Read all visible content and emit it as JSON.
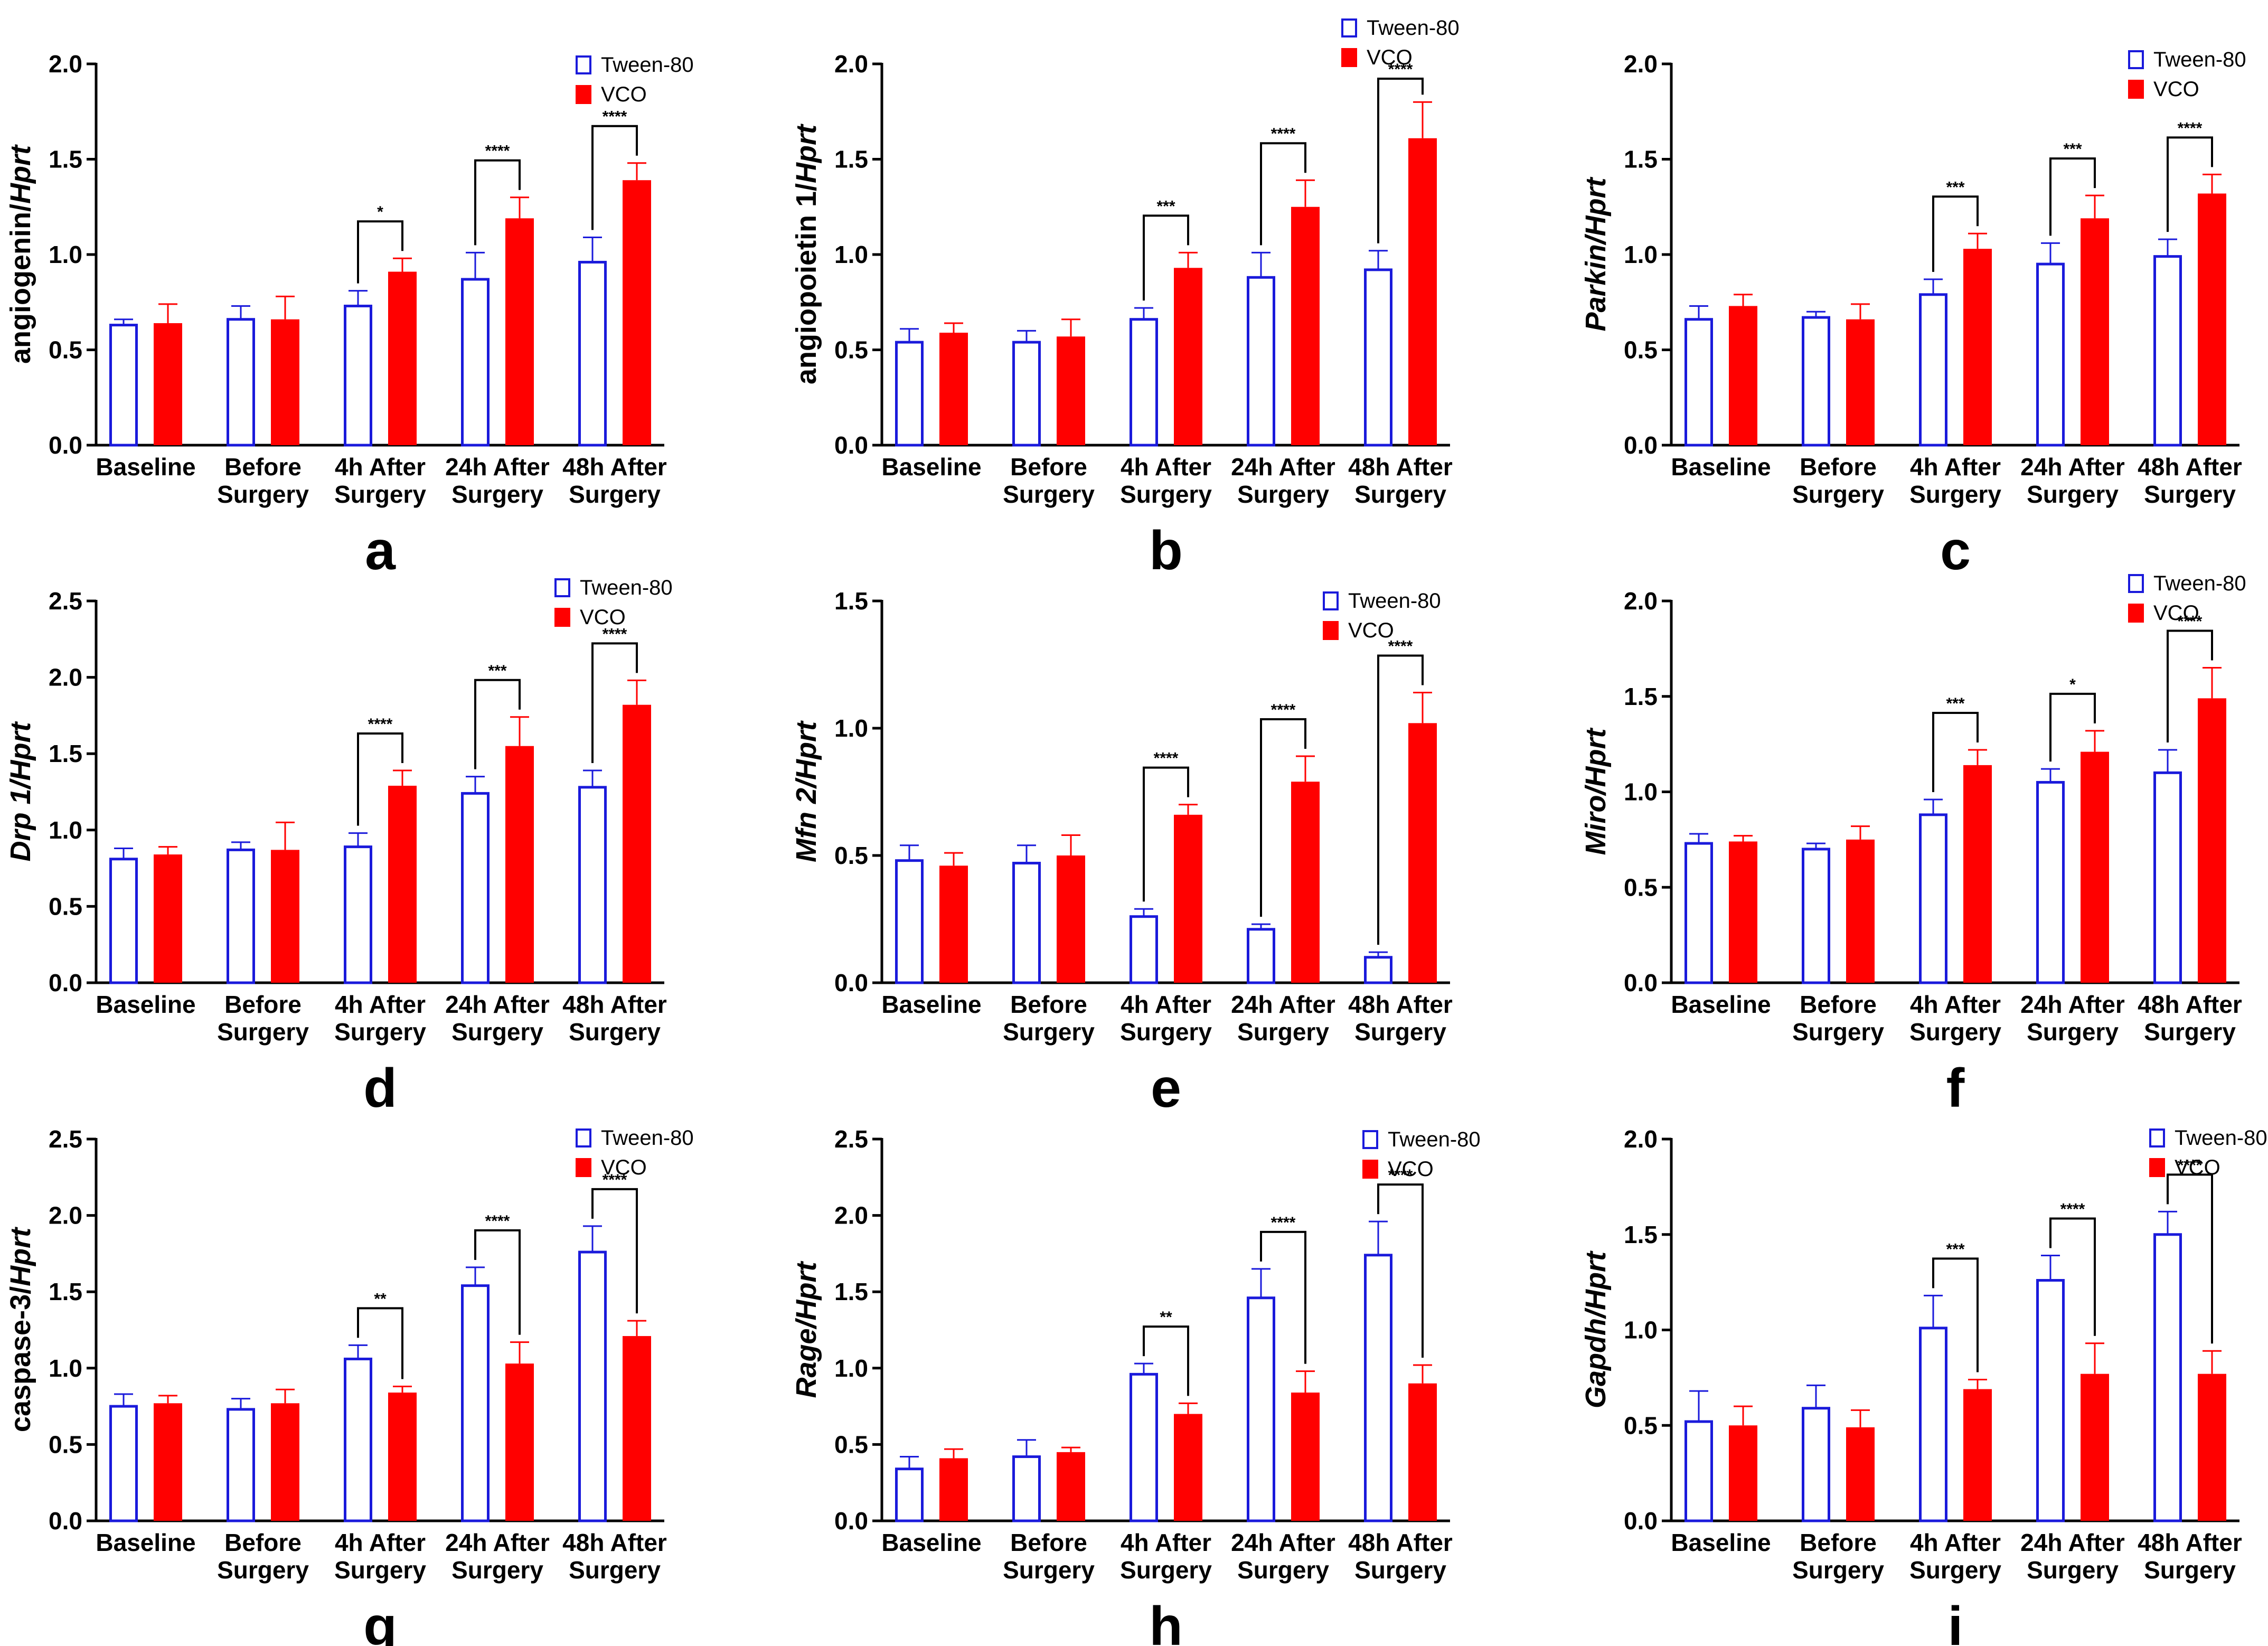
{
  "chart_data": [
    {
      "panel": "a",
      "type": "bar",
      "title": "",
      "xlabel": "",
      "ylabel": {
        "plain": "angiogenin/",
        "italic": "Hprt"
      },
      "ylabel_parts": [
        {
          "text": "angiogenin/",
          "italic": false
        },
        {
          "text": "Hprt",
          "italic": true
        }
      ],
      "ylim": [
        0,
        2.0
      ],
      "yticks": [
        "0.0",
        "0.5",
        "1.0",
        "1.5",
        "2.0"
      ],
      "categories": [
        [
          "Baseline"
        ],
        [
          "Before",
          "Surgery"
        ],
        [
          "4h After",
          "Surgery"
        ],
        [
          "24h After",
          "Surgery"
        ],
        [
          "48h After",
          "Surgery"
        ]
      ],
      "series": [
        {
          "name": "Tween-80",
          "color": "#1a1adb",
          "filled": false,
          "values": [
            0.63,
            0.66,
            0.73,
            0.87,
            0.96
          ],
          "errors": [
            0.03,
            0.07,
            0.08,
            0.14,
            0.13
          ]
        },
        {
          "name": "VCO",
          "color": "#ff0000",
          "filled": true,
          "values": [
            0.64,
            0.66,
            0.91,
            1.19,
            1.39
          ],
          "errors": [
            0.1,
            0.12,
            0.07,
            0.11,
            0.09
          ]
        }
      ],
      "significance": [
        {
          "group": 2,
          "label": "*"
        },
        {
          "group": 3,
          "label": "****"
        },
        {
          "group": 4,
          "label": "****"
        }
      ],
      "legend_position": "top-right"
    },
    {
      "panel": "b",
      "type": "bar",
      "title": "",
      "xlabel": "",
      "ylabel": {
        "plain": "angiopoietin 1/",
        "italic": "Hprt"
      },
      "ylabel_parts": [
        {
          "text": "angiopoietin 1/",
          "italic": false
        },
        {
          "text": "Hprt",
          "italic": true
        }
      ],
      "ylim": [
        0,
        2.0
      ],
      "yticks": [
        "0.0",
        "0.5",
        "1.0",
        "1.5",
        "2.0"
      ],
      "categories": [
        [
          "Baseline"
        ],
        [
          "Before",
          "Surgery"
        ],
        [
          "4h After",
          "Surgery"
        ],
        [
          "24h After",
          "Surgery"
        ],
        [
          "48h After",
          "Surgery"
        ]
      ],
      "series": [
        {
          "name": "Tween-80",
          "color": "#1a1adb",
          "filled": false,
          "values": [
            0.54,
            0.54,
            0.66,
            0.88,
            0.92
          ],
          "errors": [
            0.07,
            0.06,
            0.06,
            0.13,
            0.1
          ]
        },
        {
          "name": "VCO",
          "color": "#ff0000",
          "filled": true,
          "values": [
            0.59,
            0.57,
            0.93,
            1.25,
            1.61
          ],
          "errors": [
            0.05,
            0.09,
            0.08,
            0.14,
            0.19
          ]
        }
      ],
      "significance": [
        {
          "group": 2,
          "label": "***"
        },
        {
          "group": 3,
          "label": "****"
        },
        {
          "group": 4,
          "label": "****"
        }
      ],
      "legend_position": "top-right"
    },
    {
      "panel": "c",
      "type": "bar",
      "title": "",
      "xlabel": "",
      "ylabel": {
        "plain": "",
        "italic": "Parkin/Hprt"
      },
      "ylabel_parts": [
        {
          "text": "Parkin/Hprt",
          "italic": true
        }
      ],
      "ylim": [
        0,
        2.0
      ],
      "yticks": [
        "0.0",
        "0.5",
        "1.0",
        "1.5",
        "2.0"
      ],
      "categories": [
        [
          "Baseline"
        ],
        [
          "Before",
          "Surgery"
        ],
        [
          "4h After",
          "Surgery"
        ],
        [
          "24h After",
          "Surgery"
        ],
        [
          "48h After",
          "Surgery"
        ]
      ],
      "series": [
        {
          "name": "Tween-80",
          "color": "#1a1adb",
          "filled": false,
          "values": [
            0.66,
            0.67,
            0.79,
            0.95,
            0.99
          ],
          "errors": [
            0.07,
            0.03,
            0.08,
            0.11,
            0.09
          ]
        },
        {
          "name": "VCO",
          "color": "#ff0000",
          "filled": true,
          "values": [
            0.73,
            0.66,
            1.03,
            1.19,
            1.32
          ],
          "errors": [
            0.06,
            0.08,
            0.08,
            0.12,
            0.1
          ]
        }
      ],
      "significance": [
        {
          "group": 2,
          "label": "***"
        },
        {
          "group": 3,
          "label": "***"
        },
        {
          "group": 4,
          "label": "****"
        }
      ],
      "legend_position": "top-right"
    },
    {
      "panel": "d",
      "type": "bar",
      "title": "",
      "xlabel": "",
      "ylabel": {
        "plain": "",
        "italic": "Drp 1/Hprt"
      },
      "ylabel_parts": [
        {
          "text": "Drp 1/Hprt",
          "italic": true
        }
      ],
      "ylim": [
        0,
        2.5
      ],
      "yticks": [
        "0.0",
        "0.5",
        "1.0",
        "1.5",
        "2.0",
        "2.5"
      ],
      "categories": [
        [
          "Baseline"
        ],
        [
          "Before",
          "Surgery"
        ],
        [
          "4h After",
          "Surgery"
        ],
        [
          "24h After",
          "Surgery"
        ],
        [
          "48h After",
          "Surgery"
        ]
      ],
      "series": [
        {
          "name": "Tween-80",
          "color": "#1a1adb",
          "filled": false,
          "values": [
            0.81,
            0.87,
            0.89,
            1.24,
            1.28
          ],
          "errors": [
            0.07,
            0.05,
            0.09,
            0.11,
            0.11
          ]
        },
        {
          "name": "VCO",
          "color": "#ff0000",
          "filled": true,
          "values": [
            0.84,
            0.87,
            1.29,
            1.55,
            1.82
          ],
          "errors": [
            0.05,
            0.18,
            0.1,
            0.19,
            0.16
          ]
        }
      ],
      "significance": [
        {
          "group": 2,
          "label": "****"
        },
        {
          "group": 3,
          "label": "***"
        },
        {
          "group": 4,
          "label": "****"
        }
      ],
      "legend_position": "top-right"
    },
    {
      "panel": "e",
      "type": "bar",
      "title": "",
      "xlabel": "",
      "ylabel": {
        "plain": "",
        "italic": "Mfn 2/Hprt"
      },
      "ylabel_parts": [
        {
          "text": "Mfn 2/Hprt",
          "italic": true
        }
      ],
      "ylim": [
        0,
        1.5
      ],
      "yticks": [
        "0.0",
        "0.5",
        "1.0",
        "1.5"
      ],
      "categories": [
        [
          "Baseline"
        ],
        [
          "Before",
          "Surgery"
        ],
        [
          "4h After",
          "Surgery"
        ],
        [
          "24h After",
          "Surgery"
        ],
        [
          "48h After",
          "Surgery"
        ]
      ],
      "series": [
        {
          "name": "Tween-80",
          "color": "#1a1adb",
          "filled": false,
          "values": [
            0.48,
            0.47,
            0.26,
            0.21,
            0.1
          ],
          "errors": [
            0.06,
            0.07,
            0.03,
            0.02,
            0.02
          ]
        },
        {
          "name": "VCO",
          "color": "#ff0000",
          "filled": true,
          "values": [
            0.46,
            0.5,
            0.66,
            0.79,
            1.02
          ],
          "errors": [
            0.05,
            0.08,
            0.04,
            0.1,
            0.12
          ]
        }
      ],
      "significance": [
        {
          "group": 2,
          "label": "****"
        },
        {
          "group": 3,
          "label": "****"
        },
        {
          "group": 4,
          "label": "****"
        }
      ],
      "legend_position": "top-right"
    },
    {
      "panel": "f",
      "type": "bar",
      "title": "",
      "xlabel": "",
      "ylabel": {
        "plain": "",
        "italic": "Miro/Hprt"
      },
      "ylabel_parts": [
        {
          "text": "Miro/Hprt",
          "italic": true
        }
      ],
      "ylim": [
        0,
        2.0
      ],
      "yticks": [
        "0.0",
        "0.5",
        "1.0",
        "1.5",
        "2.0"
      ],
      "categories": [
        [
          "Baseline"
        ],
        [
          "Before",
          "Surgery"
        ],
        [
          "4h After",
          "Surgery"
        ],
        [
          "24h After",
          "Surgery"
        ],
        [
          "48h After",
          "Surgery"
        ]
      ],
      "series": [
        {
          "name": "Tween-80",
          "color": "#1a1adb",
          "filled": false,
          "values": [
            0.73,
            0.7,
            0.88,
            1.05,
            1.1
          ],
          "errors": [
            0.05,
            0.03,
            0.08,
            0.07,
            0.12
          ]
        },
        {
          "name": "VCO",
          "color": "#ff0000",
          "filled": true,
          "values": [
            0.74,
            0.75,
            1.14,
            1.21,
            1.49
          ],
          "errors": [
            0.03,
            0.07,
            0.08,
            0.11,
            0.16
          ]
        }
      ],
      "significance": [
        {
          "group": 2,
          "label": "***"
        },
        {
          "group": 3,
          "label": "*"
        },
        {
          "group": 4,
          "label": "****"
        }
      ],
      "legend_position": "top-right"
    },
    {
      "panel": "g",
      "type": "bar",
      "title": "",
      "xlabel": "",
      "ylabel": {
        "plain": "caspase-3/",
        "italic": "Hprt"
      },
      "ylabel_parts": [
        {
          "text": "caspase-3/",
          "italic": false
        },
        {
          "text": "Hprt",
          "italic": true
        }
      ],
      "ylim": [
        0,
        2.5
      ],
      "yticks": [
        "0.0",
        "0.5",
        "1.0",
        "1.5",
        "2.0",
        "2.5"
      ],
      "categories": [
        [
          "Baseline"
        ],
        [
          "Before",
          "Surgery"
        ],
        [
          "4h After",
          "Surgery"
        ],
        [
          "24h After",
          "Surgery"
        ],
        [
          "48h After",
          "Surgery"
        ]
      ],
      "series": [
        {
          "name": "Tween-80",
          "color": "#1a1adb",
          "filled": false,
          "values": [
            0.75,
            0.73,
            1.06,
            1.54,
            1.76
          ],
          "errors": [
            0.08,
            0.07,
            0.09,
            0.12,
            0.17
          ]
        },
        {
          "name": "VCO",
          "color": "#ff0000",
          "filled": true,
          "values": [
            0.77,
            0.77,
            0.84,
            1.03,
            1.21
          ],
          "errors": [
            0.05,
            0.09,
            0.04,
            0.14,
            0.1
          ]
        }
      ],
      "significance": [
        {
          "group": 2,
          "label": "**"
        },
        {
          "group": 3,
          "label": "****"
        },
        {
          "group": 4,
          "label": "****"
        }
      ],
      "legend_position": "top-right"
    },
    {
      "panel": "h",
      "type": "bar",
      "title": "",
      "xlabel": "",
      "ylabel": {
        "plain": "",
        "italic": "Rage/Hprt"
      },
      "ylabel_parts": [
        {
          "text": "Rage/Hprt",
          "italic": true
        }
      ],
      "ylim": [
        0,
        2.5
      ],
      "yticks": [
        "0.0",
        "0.5",
        "1.0",
        "1.5",
        "2.0",
        "2.5"
      ],
      "categories": [
        [
          "Baseline"
        ],
        [
          "Before",
          "Surgery"
        ],
        [
          "4h After",
          "Surgery"
        ],
        [
          "24h After",
          "Surgery"
        ],
        [
          "48h After",
          "Surgery"
        ]
      ],
      "series": [
        {
          "name": "Tween-80",
          "color": "#1a1adb",
          "filled": false,
          "values": [
            0.34,
            0.42,
            0.96,
            1.46,
            1.74
          ],
          "errors": [
            0.08,
            0.11,
            0.07,
            0.19,
            0.22
          ]
        },
        {
          "name": "VCO",
          "color": "#ff0000",
          "filled": true,
          "values": [
            0.41,
            0.45,
            0.7,
            0.84,
            0.9
          ],
          "errors": [
            0.06,
            0.03,
            0.07,
            0.14,
            0.12
          ]
        }
      ],
      "significance": [
        {
          "group": 2,
          "label": "**"
        },
        {
          "group": 3,
          "label": "****"
        },
        {
          "group": 4,
          "label": "****"
        }
      ],
      "legend_position": "top-right"
    },
    {
      "panel": "i",
      "type": "bar",
      "title": "",
      "xlabel": "",
      "ylabel": {
        "plain": "",
        "italic": "Gapdh/Hprt"
      },
      "ylabel_parts": [
        {
          "text": "Gapdh/Hprt",
          "italic": true
        }
      ],
      "ylim": [
        0,
        2.0
      ],
      "yticks": [
        "0.0",
        "0.5",
        "1.0",
        "1.5",
        "2.0"
      ],
      "categories": [
        [
          "Baseline"
        ],
        [
          "Before",
          "Surgery"
        ],
        [
          "4h After",
          "Surgery"
        ],
        [
          "24h After",
          "Surgery"
        ],
        [
          "48h After",
          "Surgery"
        ]
      ],
      "series": [
        {
          "name": "Tween-80",
          "color": "#1a1adb",
          "filled": false,
          "values": [
            0.52,
            0.59,
            1.01,
            1.26,
            1.5
          ],
          "errors": [
            0.16,
            0.12,
            0.17,
            0.13,
            0.12
          ]
        },
        {
          "name": "VCO",
          "color": "#ff0000",
          "filled": true,
          "values": [
            0.5,
            0.49,
            0.69,
            0.77,
            0.77
          ],
          "errors": [
            0.1,
            0.09,
            0.05,
            0.16,
            0.12
          ]
        }
      ],
      "significance": [
        {
          "group": 2,
          "label": "***"
        },
        {
          "group": 3,
          "label": "****"
        },
        {
          "group": 4,
          "label": "****"
        }
      ],
      "legend_position": "top-right"
    }
  ]
}
